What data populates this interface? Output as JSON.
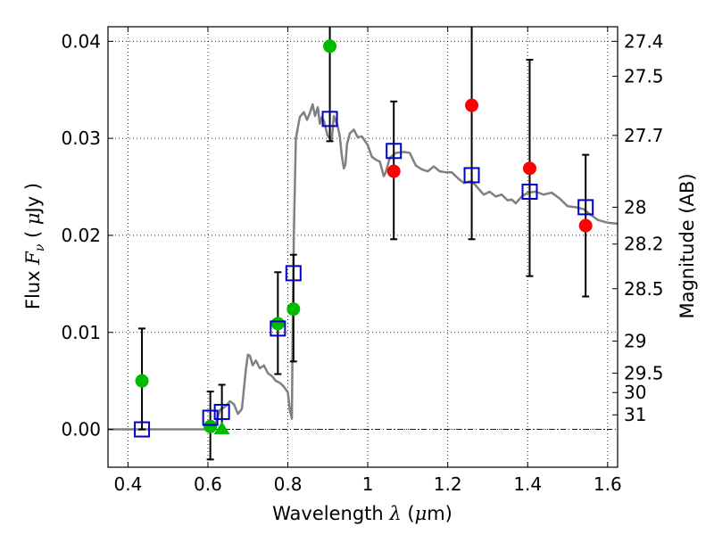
{
  "chart_data": {
    "type": "scatter",
    "title": "",
    "xlabel": "Wavelength  λ (μm)",
    "ylabel": "Flux  F_ν  ( μJy )",
    "y2label": "Magnitude (AB)",
    "xlim": [
      0.35,
      1.625
    ],
    "ylim": [
      -0.0039,
      0.0415
    ],
    "grid": true,
    "x_ticks": [
      0.4,
      0.6,
      0.8,
      1.0,
      1.2,
      1.4,
      1.6
    ],
    "x_tick_labels": [
      "0.4",
      "0.6",
      "0.8",
      "1",
      "1.2",
      "1.4",
      "1.6"
    ],
    "y_ticks": [
      0.0,
      0.01,
      0.02,
      0.03,
      0.04
    ],
    "y_tick_labels": [
      "0.00",
      "0.01",
      "0.02",
      "0.03",
      "0.04"
    ],
    "right_axis": {
      "label": "Magnitude (AB)",
      "ticks": [
        {
          "label": "27.4",
          "flux": 0.04
        },
        {
          "label": "27.5",
          "flux": 0.0364
        },
        {
          "label": "27.7",
          "flux": 0.0303
        },
        {
          "label": "28",
          "flux": 0.0229
        },
        {
          "label": "28.2",
          "flux": 0.0191
        },
        {
          "label": "28.5",
          "flux": 0.0145
        },
        {
          "label": "29",
          "flux": 0.0091
        },
        {
          "label": "29.5",
          "flux": 0.0058
        },
        {
          "label": "30",
          "flux": 0.0038
        },
        {
          "label": "31",
          "flux": 0.0015
        }
      ]
    },
    "series": [
      {
        "type": "line",
        "color": "#808080",
        "points": [
          [
            0.35,
            0.0
          ],
          [
            0.4,
            0.0
          ],
          [
            0.45,
            0.0
          ],
          [
            0.5,
            0.0
          ],
          [
            0.55,
            0.0
          ],
          [
            0.6,
            0.0
          ],
          [
            0.615,
            0.0
          ],
          [
            0.63,
            0.002
          ],
          [
            0.645,
            0.0024
          ],
          [
            0.655,
            0.0029
          ],
          [
            0.665,
            0.0026
          ],
          [
            0.675,
            0.0016
          ],
          [
            0.685,
            0.0021
          ],
          [
            0.695,
            0.0062
          ],
          [
            0.7,
            0.0077
          ],
          [
            0.705,
            0.0076
          ],
          [
            0.712,
            0.0066
          ],
          [
            0.72,
            0.0071
          ],
          [
            0.73,
            0.0063
          ],
          [
            0.74,
            0.0066
          ],
          [
            0.75,
            0.0058
          ],
          [
            0.76,
            0.0055
          ],
          [
            0.77,
            0.005
          ],
          [
            0.78,
            0.0048
          ],
          [
            0.79,
            0.0044
          ],
          [
            0.8,
            0.0038
          ],
          [
            0.805,
            0.002
          ],
          [
            0.81,
            0.0011
          ],
          [
            0.812,
            0.0098
          ],
          [
            0.815,
            0.02
          ],
          [
            0.82,
            0.03
          ],
          [
            0.83,
            0.0322
          ],
          [
            0.84,
            0.0327
          ],
          [
            0.848,
            0.0319
          ],
          [
            0.855,
            0.0326
          ],
          [
            0.862,
            0.0335
          ],
          [
            0.868,
            0.0323
          ],
          [
            0.875,
            0.0332
          ],
          [
            0.88,
            0.0315
          ],
          [
            0.885,
            0.0322
          ],
          [
            0.89,
            0.0318
          ],
          [
            0.9,
            0.0302
          ],
          [
            0.91,
            0.0299
          ],
          [
            0.915,
            0.0323
          ],
          [
            0.92,
            0.0318
          ],
          [
            0.925,
            0.0312
          ],
          [
            0.93,
            0.0302
          ],
          [
            0.935,
            0.0282
          ],
          [
            0.94,
            0.0269
          ],
          [
            0.944,
            0.0273
          ],
          [
            0.948,
            0.0294
          ],
          [
            0.955,
            0.0305
          ],
          [
            0.965,
            0.0309
          ],
          [
            0.975,
            0.0301
          ],
          [
            0.985,
            0.0302
          ],
          [
            1.0,
            0.0293
          ],
          [
            1.01,
            0.0281
          ],
          [
            1.02,
            0.0278
          ],
          [
            1.03,
            0.0276
          ],
          [
            1.04,
            0.0261
          ],
          [
            1.045,
            0.0265
          ],
          [
            1.055,
            0.028
          ],
          [
            1.07,
            0.0285
          ],
          [
            1.09,
            0.0286
          ],
          [
            1.105,
            0.0285
          ],
          [
            1.12,
            0.0272
          ],
          [
            1.135,
            0.0268
          ],
          [
            1.15,
            0.0266
          ],
          [
            1.165,
            0.0271
          ],
          [
            1.18,
            0.0266
          ],
          [
            1.195,
            0.0265
          ],
          [
            1.21,
            0.0265
          ],
          [
            1.225,
            0.0259
          ],
          [
            1.24,
            0.0254
          ],
          [
            1.26,
            0.0256
          ],
          [
            1.275,
            0.0249
          ],
          [
            1.29,
            0.0242
          ],
          [
            1.305,
            0.0245
          ],
          [
            1.32,
            0.024
          ],
          [
            1.335,
            0.0242
          ],
          [
            1.35,
            0.0236
          ],
          [
            1.36,
            0.0237
          ],
          [
            1.37,
            0.0233
          ],
          [
            1.385,
            0.024
          ],
          [
            1.4,
            0.0244
          ],
          [
            1.42,
            0.0245
          ],
          [
            1.44,
            0.0242
          ],
          [
            1.46,
            0.0244
          ],
          [
            1.48,
            0.0238
          ],
          [
            1.5,
            0.023
          ],
          [
            1.52,
            0.0229
          ],
          [
            1.54,
            0.0227
          ],
          [
            1.555,
            0.0222
          ],
          [
            1.575,
            0.0216
          ],
          [
            1.6,
            0.0213
          ],
          [
            1.625,
            0.0212
          ]
        ]
      },
      {
        "type": "scatter",
        "marker": "circle",
        "color": "#00bb00",
        "points": [
          {
            "x": 0.435,
            "y": 0.005
          },
          {
            "x": 0.606,
            "y": 0.0003
          },
          {
            "x": 0.775,
            "y": 0.0109
          },
          {
            "x": 0.814,
            "y": 0.0124
          },
          {
            "x": 0.905,
            "y": 0.0395
          }
        ]
      },
      {
        "type": "scatter",
        "marker": "triangle",
        "color": "#00bb00",
        "points": [
          {
            "x": 0.635,
            "y": 0.0
          }
        ]
      },
      {
        "type": "scatter",
        "marker": "circle",
        "color": "#ff0000",
        "points": [
          {
            "x": 1.065,
            "y": 0.0266
          },
          {
            "x": 1.26,
            "y": 0.0334
          },
          {
            "x": 1.405,
            "y": 0.0269
          },
          {
            "x": 1.545,
            "y": 0.021
          }
        ]
      },
      {
        "type": "scatter",
        "marker": "open-square",
        "color": "#0000cc",
        "points": [
          {
            "x": 0.435,
            "y": 0.0
          },
          {
            "x": 0.606,
            "y": 0.0012
          },
          {
            "x": 0.635,
            "y": 0.0018
          },
          {
            "x": 0.775,
            "y": 0.0104
          },
          {
            "x": 0.814,
            "y": 0.0161
          },
          {
            "x": 0.905,
            "y": 0.032
          },
          {
            "x": 1.065,
            "y": 0.0287
          },
          {
            "x": 1.26,
            "y": 0.0262
          },
          {
            "x": 1.405,
            "y": 0.0245
          },
          {
            "x": 1.545,
            "y": 0.0229
          }
        ]
      },
      {
        "type": "errorbars",
        "color": "#000000",
        "bars": [
          {
            "x": 0.435,
            "low": 0.0,
            "high": 0.0104
          },
          {
            "x": 0.606,
            "low": -0.0031,
            "high": 0.0039
          },
          {
            "x": 0.635,
            "low": 0.0,
            "high": 0.0046
          },
          {
            "x": 0.775,
            "low": 0.0057,
            "high": 0.0162
          },
          {
            "x": 0.814,
            "low": 0.007,
            "high": 0.018
          },
          {
            "x": 0.905,
            "low": 0.0297,
            "high": 0.0415
          },
          {
            "x": 1.065,
            "low": 0.0196,
            "high": 0.0338
          },
          {
            "x": 1.26,
            "low": 0.0196,
            "high": 0.0415
          },
          {
            "x": 1.405,
            "low": 0.0158,
            "high": 0.0381
          },
          {
            "x": 1.545,
            "low": 0.0137,
            "high": 0.0283
          }
        ]
      }
    ],
    "zero_line": {
      "y": 0.0,
      "style": "dashdot"
    }
  }
}
